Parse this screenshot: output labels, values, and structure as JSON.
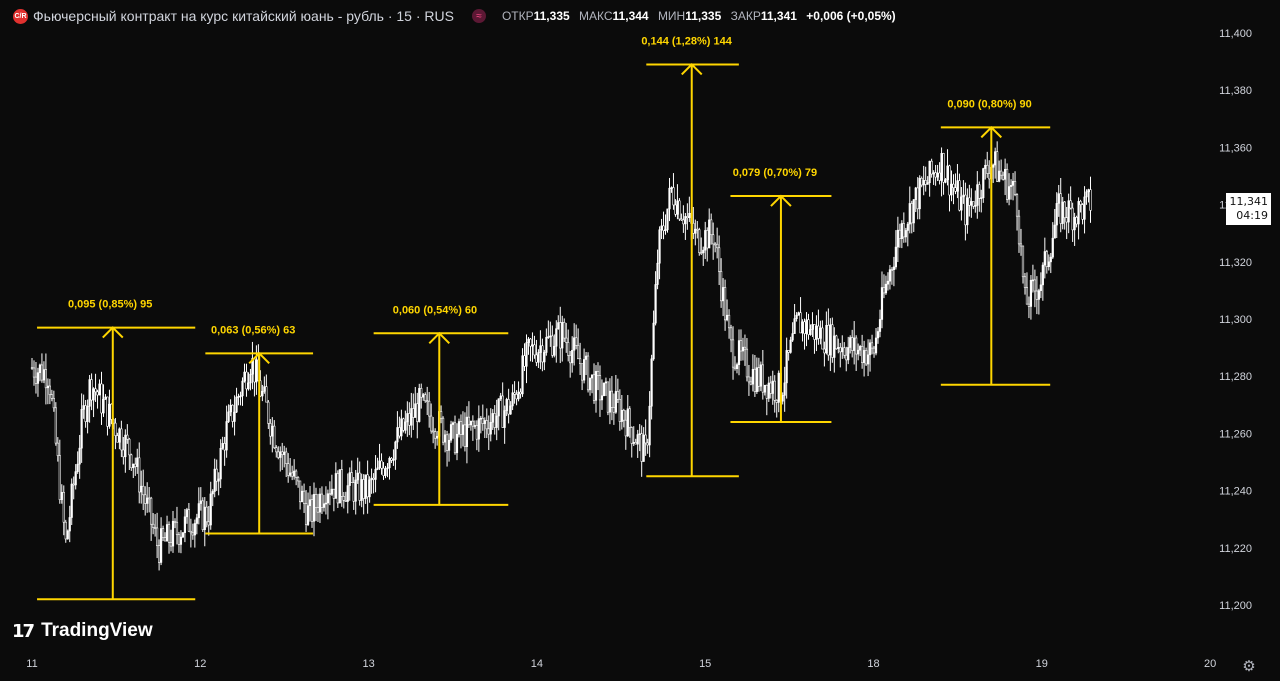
{
  "header": {
    "badge": "C/R",
    "title": "Фьючерсный контракт на курс китайский юань - рубль · 15 · RUS",
    "icon": "equals-icon",
    "icon_glyph": "≈",
    "ohlc": {
      "open_label": "ОТКР",
      "open_value": "11,335",
      "high_label": "МАКС",
      "high_value": "11,344",
      "low_label": "МИН",
      "low_value": "11,335",
      "close_label": "ЗАКР",
      "close_value": "11,341",
      "change": "+0,006 (+0,05%)"
    }
  },
  "price_tag": {
    "price": "11,341",
    "countdown": "04:19"
  },
  "logo": {
    "mark": "17",
    "text": "TradingView"
  },
  "settings_icon": "gear-icon",
  "colors": {
    "background": "#0b0b0b",
    "candles": "#ffffff",
    "annotation": "#ffd600",
    "text": "#d1d4dc"
  },
  "chart_data": {
    "type": "candlestick",
    "title": "Фьючерсный контракт на курс китайский юань - рубль · 15 · RUS",
    "y_ticks": [
      "11,200",
      "11,220",
      "11,240",
      "11,260",
      "11,280",
      "11,300",
      "11,320",
      "11,340",
      "11,360",
      "11,380",
      "11,400"
    ],
    "ylim": [
      11.2,
      11.4
    ],
    "x_ticks": [
      "11",
      "12",
      "13",
      "14",
      "15",
      "18",
      "19",
      "20"
    ],
    "grid": false,
    "last_price": 11.341,
    "price_path": [
      {
        "x": 0.0,
        "y": 11.283
      },
      {
        "x": 0.1,
        "y": 11.281
      },
      {
        "x": 0.2,
        "y": 11.221
      },
      {
        "x": 0.3,
        "y": 11.265
      },
      {
        "x": 0.35,
        "y": 11.278
      },
      {
        "x": 0.5,
        "y": 11.262
      },
      {
        "x": 0.6,
        "y": 11.252
      },
      {
        "x": 0.75,
        "y": 11.22
      },
      {
        "x": 0.95,
        "y": 11.23
      },
      {
        "x": 1.05,
        "y": 11.232
      },
      {
        "x": 1.15,
        "y": 11.26
      },
      {
        "x": 1.3,
        "y": 11.286
      },
      {
        "x": 1.45,
        "y": 11.258
      },
      {
        "x": 1.65,
        "y": 11.231
      },
      {
        "x": 1.75,
        "y": 11.242
      },
      {
        "x": 2.0,
        "y": 11.24
      },
      {
        "x": 2.15,
        "y": 11.256
      },
      {
        "x": 2.3,
        "y": 11.27
      },
      {
        "x": 2.5,
        "y": 11.258
      },
      {
        "x": 2.7,
        "y": 11.264
      },
      {
        "x": 2.85,
        "y": 11.27
      },
      {
        "x": 2.95,
        "y": 11.288
      },
      {
        "x": 3.15,
        "y": 11.295
      },
      {
        "x": 3.35,
        "y": 11.276
      },
      {
        "x": 3.5,
        "y": 11.268
      },
      {
        "x": 3.65,
        "y": 11.252
      },
      {
        "x": 3.72,
        "y": 11.324
      },
      {
        "x": 3.8,
        "y": 11.345
      },
      {
        "x": 3.95,
        "y": 11.328
      },
      {
        "x": 4.05,
        "y": 11.33
      },
      {
        "x": 4.15,
        "y": 11.29
      },
      {
        "x": 4.3,
        "y": 11.28
      },
      {
        "x": 4.45,
        "y": 11.275
      },
      {
        "x": 4.55,
        "y": 11.299
      },
      {
        "x": 4.7,
        "y": 11.294
      },
      {
        "x": 4.85,
        "y": 11.29
      },
      {
        "x": 5.0,
        "y": 11.288
      },
      {
        "x": 5.05,
        "y": 11.305
      },
      {
        "x": 5.15,
        "y": 11.33
      },
      {
        "x": 5.25,
        "y": 11.342
      },
      {
        "x": 5.4,
        "y": 11.355
      },
      {
        "x": 5.55,
        "y": 11.337
      },
      {
        "x": 5.7,
        "y": 11.355
      },
      {
        "x": 5.85,
        "y": 11.343
      },
      {
        "x": 5.9,
        "y": 11.305
      },
      {
        "x": 6.0,
        "y": 11.314
      },
      {
        "x": 6.1,
        "y": 11.338
      },
      {
        "x": 6.2,
        "y": 11.337
      },
      {
        "x": 6.3,
        "y": 11.341
      }
    ],
    "measurements": [
      {
        "label": "0,095 (0,85%) 95",
        "low": 11.202,
        "high": 11.297,
        "x0": 0.03,
        "x1": 0.97,
        "arrow_x": 0.48
      },
      {
        "label": "0,063 (0,56%) 63",
        "low": 11.225,
        "high": 11.288,
        "x0": 1.03,
        "x1": 1.67,
        "arrow_x": 1.35
      },
      {
        "label": "0,060 (0,54%) 60",
        "low": 11.235,
        "high": 11.295,
        "x0": 2.03,
        "x1": 2.83,
        "arrow_x": 2.42
      },
      {
        "label": "0,144 (1,28%) 144",
        "low": 11.245,
        "high": 11.389,
        "x0": 3.65,
        "x1": 4.2,
        "arrow_x": 3.92
      },
      {
        "label": "0,079 (0,70%) 79",
        "low": 11.264,
        "high": 11.343,
        "x0": 4.15,
        "x1": 4.75,
        "arrow_x": 4.45
      },
      {
        "label": "0,090 (0,80%) 90",
        "low": 11.277,
        "high": 11.367,
        "x0": 5.4,
        "x1": 6.05,
        "arrow_x": 5.7
      }
    ]
  }
}
